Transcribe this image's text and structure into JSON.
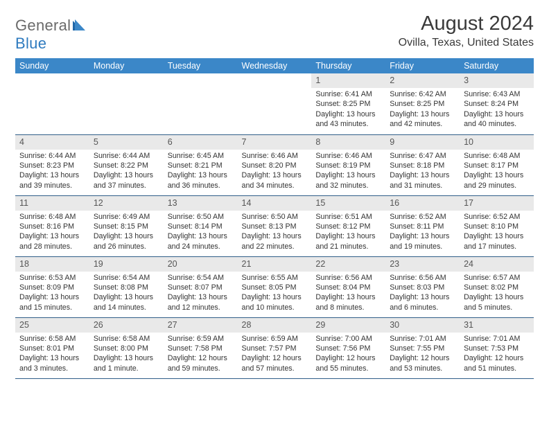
{
  "logo": {
    "general": "General",
    "blue": "Blue"
  },
  "title": "August 2024",
  "location": "Ovilla, Texas, United States",
  "colors": {
    "header_bg": "#3b87c8",
    "header_text": "#ffffff",
    "daynum_bg": "#e9e9e9",
    "row_border": "#2f5d88",
    "logo_gray": "#6a6a6a",
    "logo_blue": "#2f7bbf"
  },
  "weekdays": [
    "Sunday",
    "Monday",
    "Tuesday",
    "Wednesday",
    "Thursday",
    "Friday",
    "Saturday"
  ],
  "weeks": [
    [
      null,
      null,
      null,
      null,
      {
        "n": "1",
        "sr": "6:41 AM",
        "ss": "8:25 PM",
        "dl": "13 hours and 43 minutes."
      },
      {
        "n": "2",
        "sr": "6:42 AM",
        "ss": "8:25 PM",
        "dl": "13 hours and 42 minutes."
      },
      {
        "n": "3",
        "sr": "6:43 AM",
        "ss": "8:24 PM",
        "dl": "13 hours and 40 minutes."
      }
    ],
    [
      {
        "n": "4",
        "sr": "6:44 AM",
        "ss": "8:23 PM",
        "dl": "13 hours and 39 minutes."
      },
      {
        "n": "5",
        "sr": "6:44 AM",
        "ss": "8:22 PM",
        "dl": "13 hours and 37 minutes."
      },
      {
        "n": "6",
        "sr": "6:45 AM",
        "ss": "8:21 PM",
        "dl": "13 hours and 36 minutes."
      },
      {
        "n": "7",
        "sr": "6:46 AM",
        "ss": "8:20 PM",
        "dl": "13 hours and 34 minutes."
      },
      {
        "n": "8",
        "sr": "6:46 AM",
        "ss": "8:19 PM",
        "dl": "13 hours and 32 minutes."
      },
      {
        "n": "9",
        "sr": "6:47 AM",
        "ss": "8:18 PM",
        "dl": "13 hours and 31 minutes."
      },
      {
        "n": "10",
        "sr": "6:48 AM",
        "ss": "8:17 PM",
        "dl": "13 hours and 29 minutes."
      }
    ],
    [
      {
        "n": "11",
        "sr": "6:48 AM",
        "ss": "8:16 PM",
        "dl": "13 hours and 28 minutes."
      },
      {
        "n": "12",
        "sr": "6:49 AM",
        "ss": "8:15 PM",
        "dl": "13 hours and 26 minutes."
      },
      {
        "n": "13",
        "sr": "6:50 AM",
        "ss": "8:14 PM",
        "dl": "13 hours and 24 minutes."
      },
      {
        "n": "14",
        "sr": "6:50 AM",
        "ss": "8:13 PM",
        "dl": "13 hours and 22 minutes."
      },
      {
        "n": "15",
        "sr": "6:51 AM",
        "ss": "8:12 PM",
        "dl": "13 hours and 21 minutes."
      },
      {
        "n": "16",
        "sr": "6:52 AM",
        "ss": "8:11 PM",
        "dl": "13 hours and 19 minutes."
      },
      {
        "n": "17",
        "sr": "6:52 AM",
        "ss": "8:10 PM",
        "dl": "13 hours and 17 minutes."
      }
    ],
    [
      {
        "n": "18",
        "sr": "6:53 AM",
        "ss": "8:09 PM",
        "dl": "13 hours and 15 minutes."
      },
      {
        "n": "19",
        "sr": "6:54 AM",
        "ss": "8:08 PM",
        "dl": "13 hours and 14 minutes."
      },
      {
        "n": "20",
        "sr": "6:54 AM",
        "ss": "8:07 PM",
        "dl": "13 hours and 12 minutes."
      },
      {
        "n": "21",
        "sr": "6:55 AM",
        "ss": "8:05 PM",
        "dl": "13 hours and 10 minutes."
      },
      {
        "n": "22",
        "sr": "6:56 AM",
        "ss": "8:04 PM",
        "dl": "13 hours and 8 minutes."
      },
      {
        "n": "23",
        "sr": "6:56 AM",
        "ss": "8:03 PM",
        "dl": "13 hours and 6 minutes."
      },
      {
        "n": "24",
        "sr": "6:57 AM",
        "ss": "8:02 PM",
        "dl": "13 hours and 5 minutes."
      }
    ],
    [
      {
        "n": "25",
        "sr": "6:58 AM",
        "ss": "8:01 PM",
        "dl": "13 hours and 3 minutes."
      },
      {
        "n": "26",
        "sr": "6:58 AM",
        "ss": "8:00 PM",
        "dl": "13 hours and 1 minute."
      },
      {
        "n": "27",
        "sr": "6:59 AM",
        "ss": "7:58 PM",
        "dl": "12 hours and 59 minutes."
      },
      {
        "n": "28",
        "sr": "6:59 AM",
        "ss": "7:57 PM",
        "dl": "12 hours and 57 minutes."
      },
      {
        "n": "29",
        "sr": "7:00 AM",
        "ss": "7:56 PM",
        "dl": "12 hours and 55 minutes."
      },
      {
        "n": "30",
        "sr": "7:01 AM",
        "ss": "7:55 PM",
        "dl": "12 hours and 53 minutes."
      },
      {
        "n": "31",
        "sr": "7:01 AM",
        "ss": "7:53 PM",
        "dl": "12 hours and 51 minutes."
      }
    ]
  ],
  "labels": {
    "sunrise": "Sunrise: ",
    "sunset": "Sunset: ",
    "daylight": "Daylight: "
  }
}
